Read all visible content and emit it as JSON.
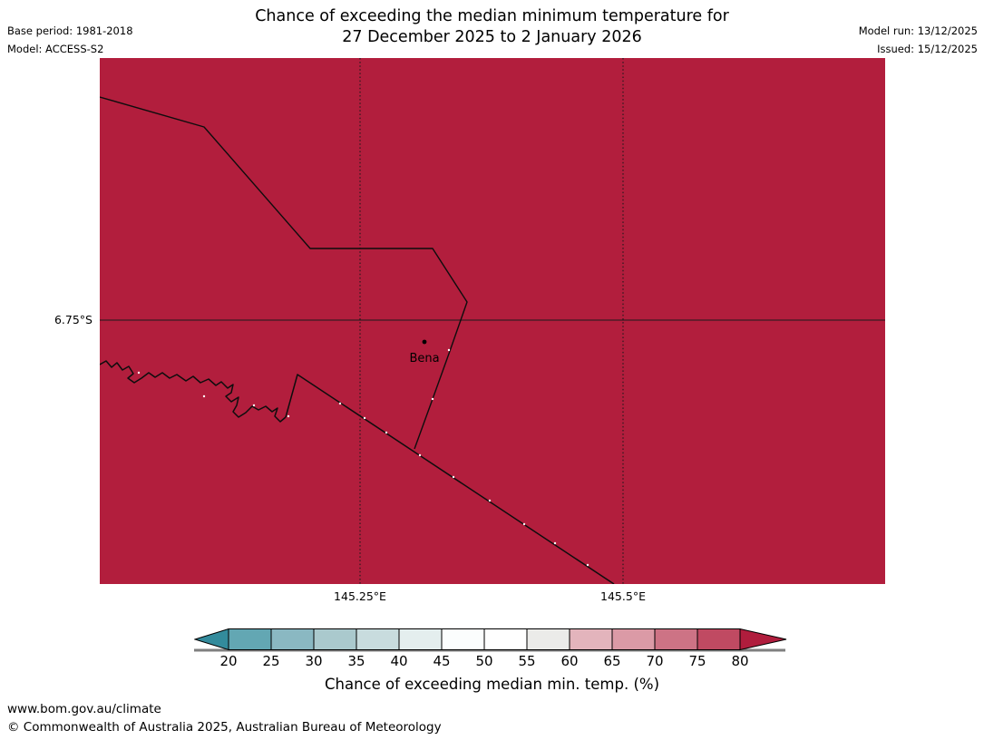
{
  "header": {
    "title_line1": "Chance of exceeding the median minimum temperature for",
    "title_line2": "27 December 2025 to 2 January 2026",
    "base_period": "Base period: 1981-2018",
    "model": "Model: ACCESS-S2",
    "model_run": "Model run: 13/12/2025",
    "issued": "Issued: 15/12/2025"
  },
  "map": {
    "fill_color": "#b21e3d",
    "line_color": "#0d0d0d",
    "place_label": "Bena",
    "lat_label": "6.75°S",
    "lon_label_1": "145.25°E",
    "lon_label_2": "145.5°E"
  },
  "colorbar": {
    "caption": "Chance of exceeding median min. temp. (%)",
    "tick_labels": [
      "20",
      "25",
      "30",
      "35",
      "40",
      "45",
      "50",
      "55",
      "60",
      "65",
      "70",
      "75",
      "80"
    ],
    "segment_colors": [
      "#63a7b3",
      "#8ab8c2",
      "#aac9cd",
      "#c8dcde",
      "#e4eeee",
      "#fbfdfd",
      "#fefefe",
      "#ebebe9",
      "#e3b4bc",
      "#db9aa6",
      "#cd7385",
      "#c04a62"
    ],
    "left_arrow_color": "#338b9c",
    "right_arrow_color": "#b01d3d",
    "underline_color": "#7f7f7f",
    "outline_color": "#000000"
  },
  "footer": {
    "url": "www.bom.gov.au/climate",
    "copyright": "© Commonwealth of Australia 2025, Australian Bureau of Meteorology"
  }
}
